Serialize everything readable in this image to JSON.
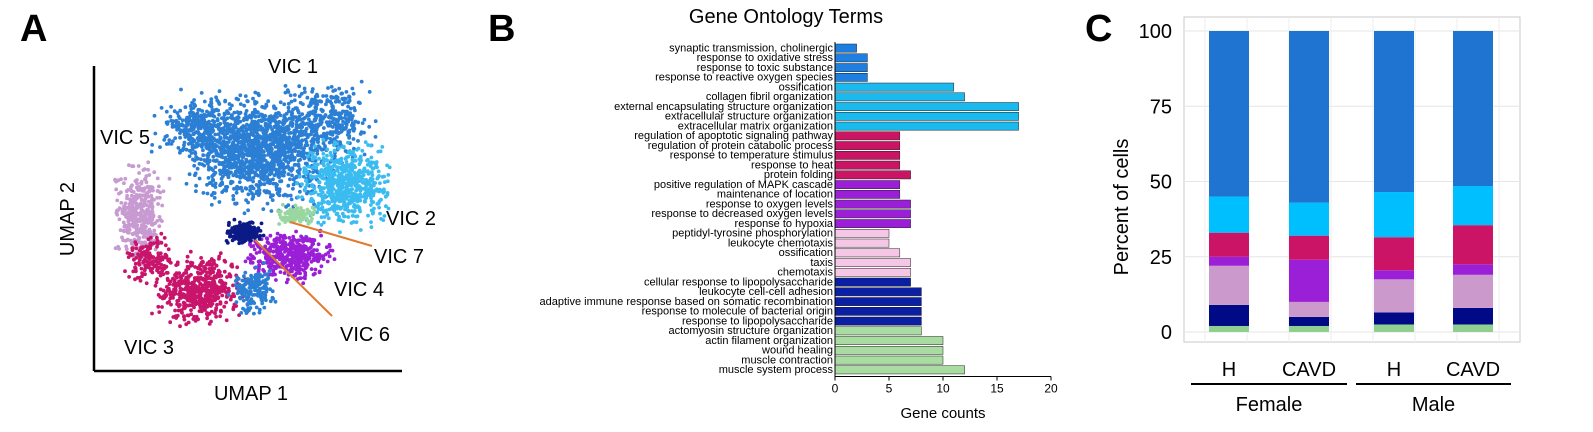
{
  "panels": {
    "a": "A",
    "b": "B",
    "c": "C"
  },
  "umap": {
    "xlabel": "UMAP 1",
    "ylabel": "UMAP 2",
    "clusters": [
      {
        "label": "VIC 1",
        "color": "#2b7fd4"
      },
      {
        "label": "VIC 2",
        "color": "#3bbcf0"
      },
      {
        "label": "VIC 3",
        "color": "#c8156b"
      },
      {
        "label": "VIC 4",
        "color": "#9a1fd6"
      },
      {
        "label": "VIC 5",
        "color": "#c79ad1"
      },
      {
        "label": "VIC 6",
        "color": "#0b1a86"
      },
      {
        "label": "VIC 7",
        "color": "#9ad6a0"
      }
    ]
  },
  "chart_data": [
    {
      "type": "bar",
      "orientation": "horizontal",
      "title": "Gene Ontology Terms",
      "xlabel": "Gene counts",
      "ylabel": "",
      "xlim": [
        0,
        20
      ],
      "xticks": [
        0,
        5,
        10,
        15,
        20
      ],
      "categories": [
        "synaptic transmission, cholinergic",
        "response to oxidative stress",
        "response to toxic substance",
        "response to reactive oxygen species",
        "ossification",
        "collagen fibril organization",
        "external encapsulating structure organization",
        "extracellular structure organization",
        "extracellular matrix organization",
        "regulation of apoptotic signaling pathway",
        "regulation of protein catabolic process",
        "response to temperature stimulus",
        "response to heat",
        "protein folding",
        "positive regulation of MAPK cascade",
        "maintenance of location",
        "response to oxygen levels",
        "response to decreased oxygen levels",
        "response to hypoxia",
        "peptidyl-tyrosine phosphorylation",
        "leukocyte chemotaxis",
        "ossification",
        "taxis",
        "chemotaxis",
        "cellular response to lipopolysaccharide",
        "leukocyte cell-cell adhesion",
        "adaptive immune response based on somatic recombination",
        "response to molecule of bacterial origin",
        "response to lipopolysaccharide",
        "actomyosin structure organization",
        "actin filament organization",
        "wound healing",
        "muscle contraction",
        "muscle system process"
      ],
      "values": [
        2,
        3,
        3,
        3,
        11,
        12,
        17,
        17,
        17,
        6,
        6,
        6,
        6,
        7,
        6,
        6,
        7,
        7,
        7,
        5,
        5,
        6,
        7,
        7,
        7,
        8,
        8,
        8,
        8,
        8,
        10,
        10,
        10,
        12
      ],
      "colors": [
        "#1f7fe0",
        "#1f7fe0",
        "#1f7fe0",
        "#1f7fe0",
        "#1ab9ee",
        "#1ab9ee",
        "#1ab9ee",
        "#1ab9ee",
        "#1ab9ee",
        "#cc1465",
        "#cc1465",
        "#cc1465",
        "#cc1465",
        "#cc1465",
        "#9b1fd6",
        "#9b1fd6",
        "#9b1fd6",
        "#9b1fd6",
        "#9b1fd6",
        "#f5c6e6",
        "#f5c6e6",
        "#f5c6e6",
        "#f5c6e6",
        "#f5c6e6",
        "#0a1fa3",
        "#0a1fa3",
        "#0a1fa3",
        "#0a1fa3",
        "#0a1fa3",
        "#a8dca0",
        "#a8dca0",
        "#a8dca0",
        "#a8dca0",
        "#a8dca0"
      ]
    },
    {
      "type": "bar",
      "stacked": true,
      "title": "",
      "xlabel": "",
      "ylabel": "Percent of cells",
      "ylim": [
        0,
        100
      ],
      "yticks": [
        0,
        25,
        50,
        75,
        100
      ],
      "categories": [
        "H",
        "CAVD",
        "H",
        "CAVD"
      ],
      "groups": [
        {
          "label": "Female",
          "categories": [
            0,
            1
          ]
        },
        {
          "label": "Male",
          "categories": [
            2,
            3
          ]
        }
      ],
      "series": [
        {
          "color": "#8fcf8f",
          "values": [
            2,
            2,
            2.5,
            2.5
          ]
        },
        {
          "color": "#000a87",
          "values": [
            7,
            3,
            4,
            5.5
          ]
        },
        {
          "color": "#cc99cc",
          "values": [
            13,
            5,
            11,
            11
          ]
        },
        {
          "color": "#9b1fd6",
          "values": [
            3,
            14,
            3,
            3.5
          ]
        },
        {
          "color": "#cc1466",
          "values": [
            8,
            8,
            11,
            13
          ]
        },
        {
          "color": "#00bfff",
          "values": [
            12,
            11,
            15,
            13
          ]
        },
        {
          "color": "#1e74d0",
          "values": [
            55,
            57,
            53.5,
            51.5
          ]
        }
      ]
    }
  ]
}
